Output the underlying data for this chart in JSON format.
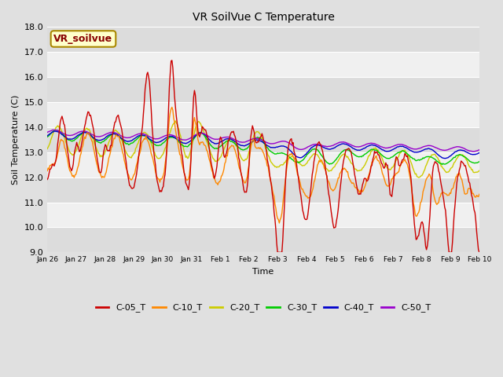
{
  "title": "VR SoilVue C Temperature",
  "xlabel": "Time",
  "ylabel": "Soil Temperature (C)",
  "ylim": [
    9.0,
    18.0
  ],
  "yticks": [
    9.0,
    10.0,
    11.0,
    12.0,
    13.0,
    14.0,
    15.0,
    16.0,
    17.0,
    18.0
  ],
  "xtick_labels": [
    "Jan 26",
    "Jan 27",
    "Jan 28",
    "Jan 29",
    "Jan 30",
    "Jan 31",
    "Feb 1",
    "Feb 2",
    "Feb 3",
    "Feb 4",
    "Feb 5",
    "Feb 6",
    "Feb 7",
    "Feb 8",
    "Feb 9",
    "Feb 10"
  ],
  "series_colors": {
    "C-05_T": "#cc0000",
    "C-10_T": "#ff8800",
    "C-20_T": "#cccc00",
    "C-30_T": "#00cc00",
    "C-40_T": "#0000cc",
    "C-50_T": "#9900cc"
  },
  "legend_label": "VR_soilvue",
  "legend_box_color": "#ffffcc",
  "legend_box_edge": "#aa8800",
  "background_color": "#e0e0e0",
  "plot_bg_color": "#f5f5f5",
  "band_colors": [
    "#dcdcdc",
    "#f0f0f0"
  ],
  "grid_color": "#c8c8c8",
  "n_points": 500
}
